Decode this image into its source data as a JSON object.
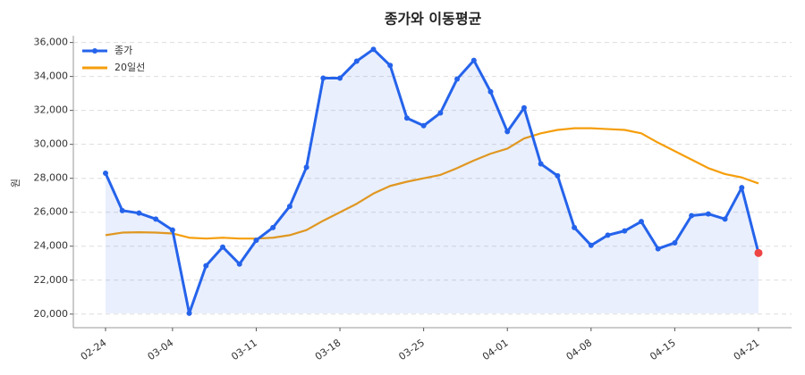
{
  "chart_data": {
    "type": "line",
    "title": "종가와 이동평균",
    "y_label": "원",
    "categories": [
      "02-24",
      null,
      null,
      null,
      "03-04",
      null,
      null,
      null,
      null,
      "03-11",
      null,
      null,
      null,
      null,
      "03-18",
      null,
      null,
      null,
      null,
      "03-25",
      null,
      null,
      null,
      null,
      "04-01",
      null,
      null,
      null,
      null,
      "04-08",
      null,
      null,
      null,
      null,
      "04-15",
      null,
      null,
      null,
      null,
      "04-21"
    ],
    "series": [
      {
        "name": "종가",
        "color": "#2563eb",
        "markers": true,
        "fill": true,
        "values": [
          28300,
          26100,
          25950,
          25600,
          24950,
          20050,
          22850,
          23950,
          22950,
          24350,
          25100,
          26350,
          28650,
          33900,
          33900,
          34900,
          35600,
          34650,
          31550,
          31100,
          31850,
          33850,
          34950,
          33100,
          30750,
          32150,
          28850,
          28150,
          25100,
          24050,
          24650,
          24900,
          25450,
          23850,
          24200,
          25800,
          25900,
          25600,
          27450,
          23600
        ]
      },
      {
        "name": "20일선",
        "color": "#f59e0b",
        "markers": false,
        "fill": false,
        "values": [
          24650,
          24800,
          24820,
          24800,
          24750,
          24500,
          24450,
          24500,
          24450,
          24450,
          24500,
          24650,
          24950,
          25500,
          26000,
          26500,
          27100,
          27550,
          27800,
          28000,
          28200,
          28600,
          29050,
          29450,
          29750,
          30350,
          30650,
          30850,
          30950,
          30950,
          30900,
          30850,
          30650,
          30100,
          29600,
          29100,
          28600,
          28250,
          28050,
          27700
        ]
      }
    ],
    "last_point_color": "#ef4444",
    "ylim": [
      19200,
      36400
    ],
    "yticks": [
      {
        "value": 20000,
        "label": "20,000"
      },
      {
        "value": 22000,
        "label": "22,000"
      },
      {
        "value": 24000,
        "label": "24,000"
      },
      {
        "value": 26000,
        "label": "26,000"
      },
      {
        "value": 28000,
        "label": "28,000"
      },
      {
        "value": 30000,
        "label": "30,000"
      },
      {
        "value": 32000,
        "label": "32,000"
      },
      {
        "value": 34000,
        "label": "34,000"
      },
      {
        "value": 36000,
        "label": "36,000"
      }
    ],
    "grid": true,
    "legend": "upper-left"
  }
}
